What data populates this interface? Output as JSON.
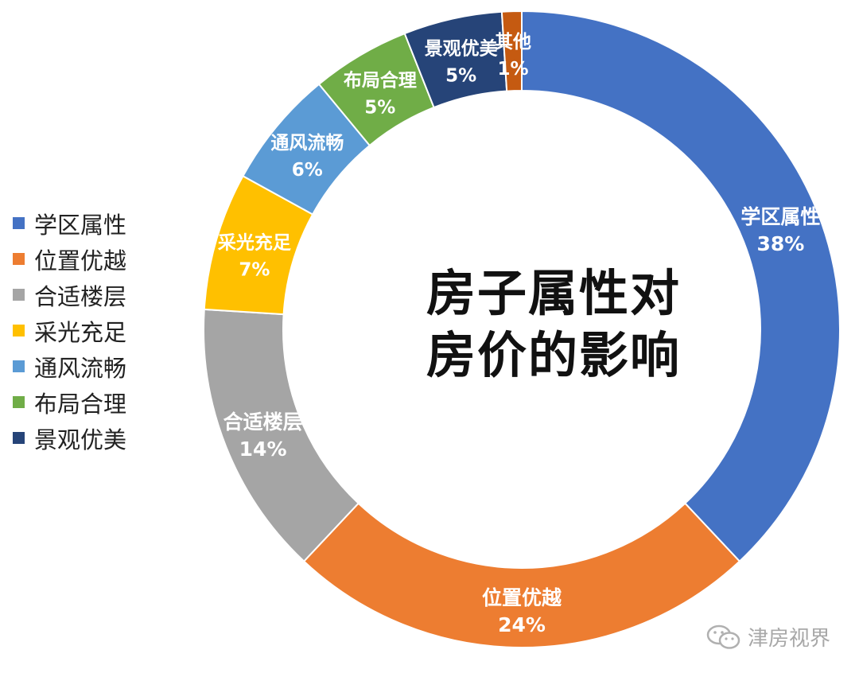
{
  "chart_data": {
    "type": "donut",
    "title_lines": [
      "房子属性对",
      "房价的影响"
    ],
    "slices": [
      {
        "label": "学区属性",
        "value": 38,
        "display": "38%",
        "color": "#4472C4"
      },
      {
        "label": "位置优越",
        "value": 24,
        "display": "24%",
        "color": "#ED7D31"
      },
      {
        "label": "合适楼层",
        "value": 14,
        "display": "14%",
        "color": "#A5A5A5"
      },
      {
        "label": "采光充足",
        "value": 7,
        "display": "7%",
        "color": "#FFC000"
      },
      {
        "label": "通风流畅",
        "value": 6,
        "display": "6%",
        "color": "#5B9BD5"
      },
      {
        "label": "布局合理",
        "value": 5,
        "display": "5%",
        "color": "#70AD47"
      },
      {
        "label": "景观优美",
        "value": 5,
        "display": "5%",
        "color": "#264478"
      },
      {
        "label": "其他",
        "value": 1,
        "display": "1%",
        "color": "#C55A11"
      }
    ],
    "legend": {
      "position": "left",
      "items": [
        "学区属性",
        "位置优越",
        "合适楼层",
        "采光充足",
        "通风流畅",
        "布局合理",
        "景观优美"
      ]
    }
  },
  "watermark": {
    "text": "津房视界",
    "icon": "wechat-icon"
  }
}
